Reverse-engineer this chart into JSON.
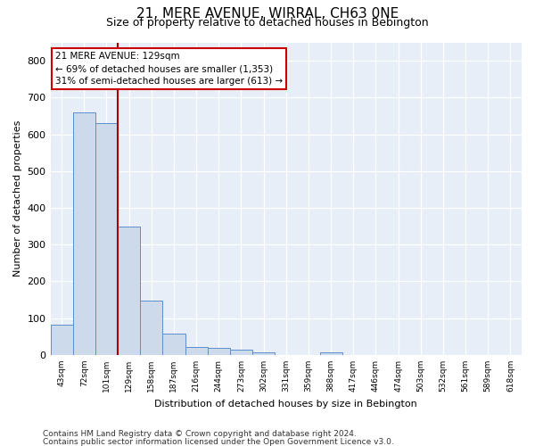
{
  "title": "21, MERE AVENUE, WIRRAL, CH63 0NE",
  "subtitle": "Size of property relative to detached houses in Bebington",
  "xlabel": "Distribution of detached houses by size in Bebington",
  "ylabel": "Number of detached properties",
  "bar_color": "#ccdaeb",
  "bar_edge_color": "#5b8fc9",
  "bg_color": "#e8eef7",
  "grid_color": "#ffffff",
  "vline_color": "#aa0000",
  "vline_x_index": 2.5,
  "categories": [
    "43sqm",
    "72sqm",
    "101sqm",
    "129sqm",
    "158sqm",
    "187sqm",
    "216sqm",
    "244sqm",
    "273sqm",
    "302sqm",
    "331sqm",
    "359sqm",
    "388sqm",
    "417sqm",
    "446sqm",
    "474sqm",
    "503sqm",
    "532sqm",
    "561sqm",
    "589sqm",
    "618sqm"
  ],
  "values": [
    83,
    660,
    630,
    348,
    148,
    57,
    22,
    20,
    14,
    8,
    0,
    0,
    7,
    0,
    0,
    0,
    0,
    0,
    0,
    0,
    0
  ],
  "annotation_text": "21 MERE AVENUE: 129sqm\n← 69% of detached houses are smaller (1,353)\n31% of semi-detached houses are larger (613) →",
  "annotation_box_color": "#ffffff",
  "annotation_box_edge": "#cc0000",
  "footnote1": "Contains HM Land Registry data © Crown copyright and database right 2024.",
  "footnote2": "Contains public sector information licensed under the Open Government Licence v3.0.",
  "ylim": [
    0,
    850
  ],
  "yticks": [
    0,
    100,
    200,
    300,
    400,
    500,
    600,
    700,
    800
  ]
}
